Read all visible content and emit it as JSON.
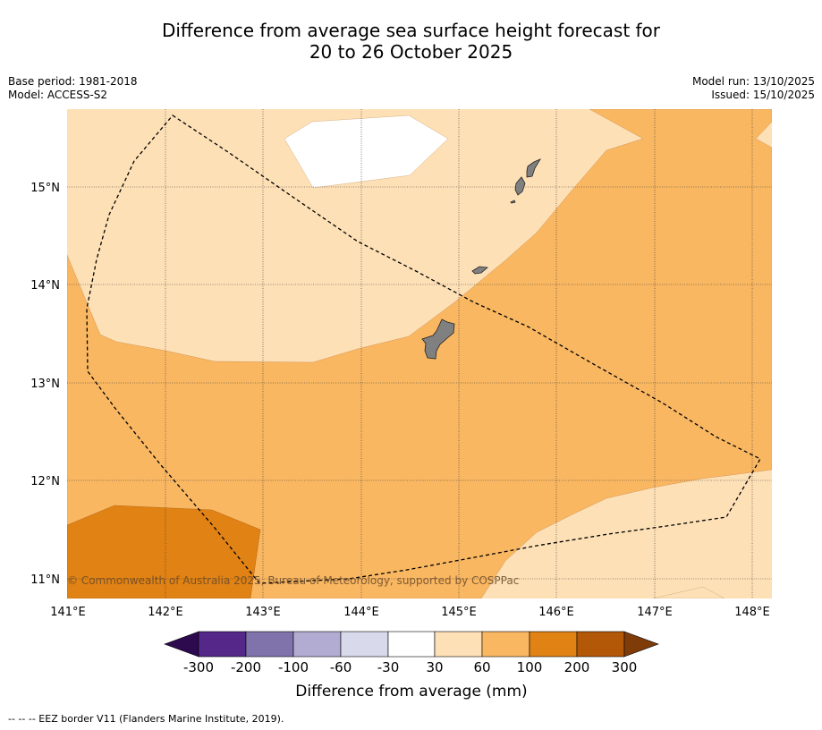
{
  "title": {
    "line1": "Difference from average sea surface height forecast for",
    "line2": "20 to 26 October 2025"
  },
  "meta": {
    "base_period": "Base period: 1981-2018",
    "model": "Model: ACCESS-S2",
    "model_run": "Model run: 13/10/2025",
    "issued": "Issued: 15/10/2025"
  },
  "map": {
    "lon_labels": [
      "141°E",
      "142°E",
      "143°E",
      "144°E",
      "145°E",
      "146°E",
      "147°E",
      "148°E"
    ],
    "lat_labels": [
      "15°N",
      "14°N",
      "13°N",
      "12°N",
      "11°N"
    ],
    "copyright": "© Commonwealth of Australia 2025, Bureau of Meteorology, supported by COSPPac",
    "features": [
      {
        "name": "Guam",
        "type": "island"
      },
      {
        "name": "Rota",
        "type": "island"
      },
      {
        "name": "Tinian",
        "type": "island"
      },
      {
        "name": "Saipan",
        "type": "island"
      },
      {
        "name": "EEZ border",
        "type": "dashed-line"
      }
    ]
  },
  "legend": {
    "title": "Difference from average (mm)",
    "tick_labels": [
      "-300",
      "-200",
      "-100",
      "-60",
      "-30",
      "30",
      "60",
      "100",
      "200",
      "300"
    ],
    "colors": {
      "below_-300": "#2d0a4e",
      "-300_-200": "#542788",
      "-200_-100": "#8073ac",
      "-100_-60": "#b2abd2",
      "-60_-30": "#d8daeb",
      "-30_30": "#ffffff",
      "30_60": "#fee0b6",
      "60_100": "#f9b762",
      "100_200": "#e08214",
      "200_300": "#b35806",
      "above_300": "#7f3b08"
    }
  },
  "footer": "--  --  -- EEZ border V11 (Flanders Marine Institute, 2019)."
}
